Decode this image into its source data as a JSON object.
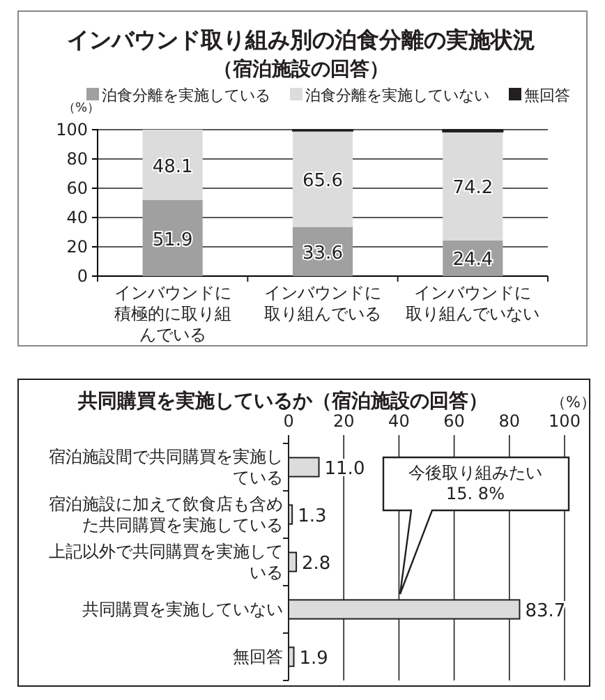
{
  "chart_data": [
    {
      "type": "bar",
      "stacked": true,
      "title": "インバウンド取り組み別の泊食分離の実施状況",
      "subtitle": "（宿泊施設の回答）",
      "ylabel": "（%）",
      "categories": [
        "インバウンドに積極的に取り組んでいる",
        "インバウンドに取り組んでいる",
        "インバウンドに取り組んでいない"
      ],
      "series": [
        {
          "name": "泊食分離を実施している",
          "color": "#a0a0a0",
          "values": [
            51.9,
            33.6,
            24.4
          ],
          "value_labels": [
            "51.9",
            "33.6",
            "24.4"
          ]
        },
        {
          "name": "泊食分離を実施していない",
          "color": "#dcdcdc",
          "values": [
            48.1,
            65.6,
            74.2
          ],
          "value_labels": [
            "48.1",
            "65.6",
            "74.2"
          ]
        },
        {
          "name": "無回答",
          "color": "#231f20",
          "values": [
            0,
            0.8,
            1.4
          ]
        }
      ],
      "ylim": [
        0,
        100
      ],
      "yticks": [
        0,
        20,
        40,
        60,
        80,
        100
      ],
      "grid": "y",
      "legend": "top"
    },
    {
      "type": "bar",
      "orientation": "horizontal",
      "title": "共同購買を実施しているか（宿泊施設の回答）",
      "xlabel": "（%）",
      "categories": [
        "宿泊施設間で共同購買を実施している",
        "宿泊施設に加えて飲食店も含めた共同購買を実施している",
        "上記以外で共同購買を実施している",
        "共同購買を実施していない",
        "無回答"
      ],
      "values": [
        11.0,
        1.3,
        2.8,
        83.7,
        1.9
      ],
      "value_labels": [
        "11.0",
        "1.3",
        "2.8",
        "83.7",
        "1.9"
      ],
      "color": "#dcdcdc",
      "xlim": [
        0,
        100
      ],
      "xticks": [
        0,
        20,
        40,
        60,
        80,
        100
      ],
      "grid": "x",
      "annotations": [
        "今後取り組みたい\n15. 8%"
      ]
    }
  ]
}
